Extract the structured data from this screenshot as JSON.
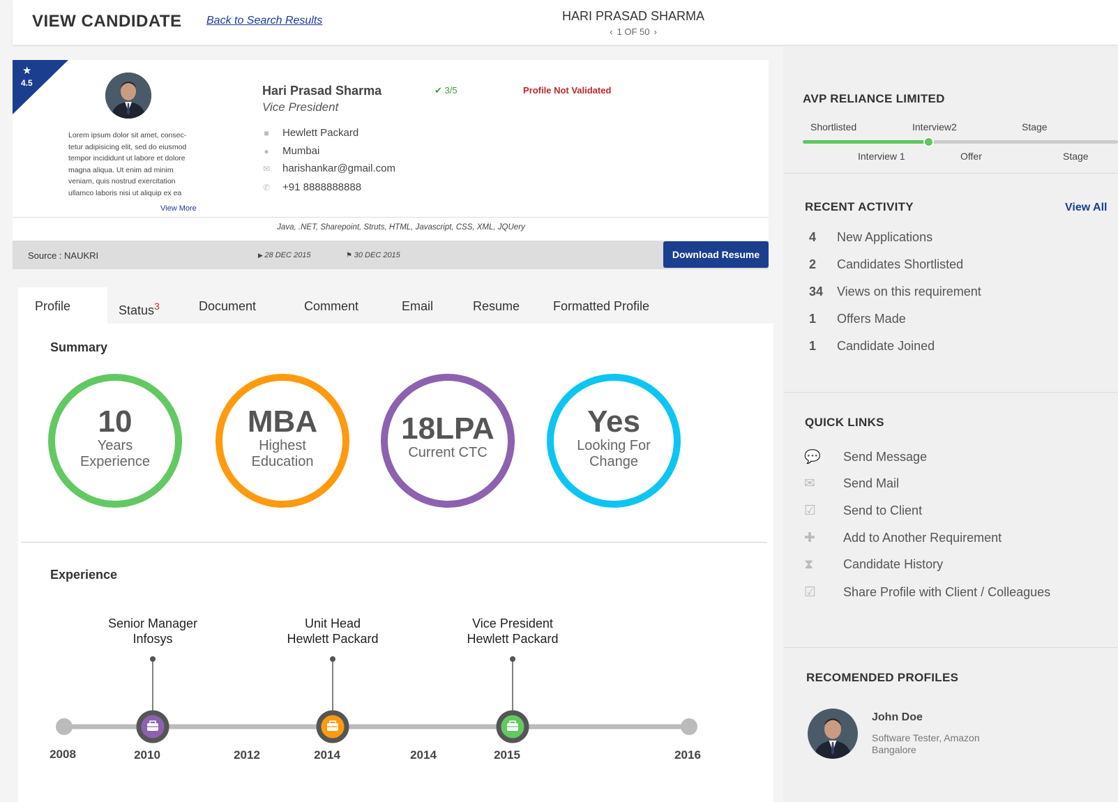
{
  "header": {
    "title": "VIEW CANDIDATE",
    "back_link": "Back to Search Results",
    "candidate_name": "HARI PRASAD SHARMA",
    "pager": "1 OF 50",
    "prev": "‹",
    "next": "›"
  },
  "profile": {
    "rating": "4.5",
    "star": "★",
    "bio": "Lorem ipsum dolor sit amet, consec-tetur adipisicing elit, sed do eiusmod tempor incididunt ut labore et dolore magna aliqua. Ut enim ad minim veniam, quis nostrud exercitation ullamco laboris nisi ut aliquip ex ea",
    "view_more": "View More",
    "name": "Hari Prasad Sharma",
    "role": "Vice President",
    "stage_count": "✔ 3/5",
    "validation": "Profile Not Validated",
    "company": "Hewlett Packard",
    "city": "Mumbai",
    "email": "harishankar@gmail.com",
    "phone": "+91 8888888888",
    "skills": "Java, .NET, Sharepoint, Struts, HTML, Javascript, CSS, XML, JQUery",
    "source": "Source : NAUKRI",
    "date_start": "28 DEC 2015",
    "date_end": "30 DEC 2015",
    "download_label": "Download Resume"
  },
  "tabs": {
    "profile": "Profile",
    "status": "Status",
    "status_badge": "3",
    "document": "Document",
    "comment": "Comment",
    "email": "Email",
    "resume": "Resume",
    "formatted": "Formatted Profile"
  },
  "summary": {
    "title": "Summary",
    "items": [
      {
        "big": "10",
        "line1": "Years",
        "line2": "Experience",
        "color": "#62c962"
      },
      {
        "big": "MBA",
        "line1": "Highest",
        "line2": "Education",
        "color": "#ff9a0e"
      },
      {
        "big": "18LPA",
        "line1": "Current CTC",
        "line2": "",
        "color": "#8c62b0"
      },
      {
        "big": "Yes",
        "line1": "Looking For",
        "line2": "Change",
        "color": "#0dc5f2"
      }
    ]
  },
  "experience": {
    "title": "Experience",
    "jobs": [
      {
        "title": "Senior Manager",
        "company": "Infosys",
        "year": "2010",
        "color": "#8c62b0"
      },
      {
        "title": "Unit Head",
        "company": "Hewlett Packard",
        "year": "2014",
        "color": "#ff9a0e"
      },
      {
        "title": "Vice President",
        "company": "Hewlett Packard",
        "year": "2015",
        "color": "#62c962"
      }
    ],
    "axis_years": [
      "2008",
      "2012",
      "2014",
      "2016"
    ]
  },
  "sidebar": {
    "requirement_title": "AVP RELIANCE LIMITED",
    "stages_top": [
      "Shortlisted",
      "Interview2",
      "Stage"
    ],
    "stages_bottom": [
      "Interview 1",
      "Offer",
      "Stage"
    ],
    "activity_title": "RECENT ACTIVITY",
    "view_all": "View All",
    "activity": [
      {
        "num": "4",
        "label": "New Applications"
      },
      {
        "num": "2",
        "label": "Candidates Shortlisted"
      },
      {
        "num": "34",
        "label": "Views on this requirement"
      },
      {
        "num": "1",
        "label": "Offers Made"
      },
      {
        "num": "1",
        "label": "Candidate Joined"
      }
    ],
    "quick_title": "QUICK LINKS",
    "quick_links": [
      {
        "icon": "speech-bubble-icon",
        "label": "Send Message"
      },
      {
        "icon": "envelope-icon",
        "label": "Send Mail"
      },
      {
        "icon": "checkbox-icon",
        "label": "Send to Client"
      },
      {
        "icon": "plus-icon",
        "label": "Add to Another Requirement"
      },
      {
        "icon": "hourglass-icon",
        "label": "Candidate History"
      },
      {
        "icon": "checkbox-icon",
        "label": "Share Profile with Client / Colleagues"
      }
    ],
    "recommended_title": "RECOMENDED PROFILES",
    "recommended": {
      "name": "John Doe",
      "line1": "Software Tester, Amazon",
      "line2": "Bangalore"
    }
  }
}
